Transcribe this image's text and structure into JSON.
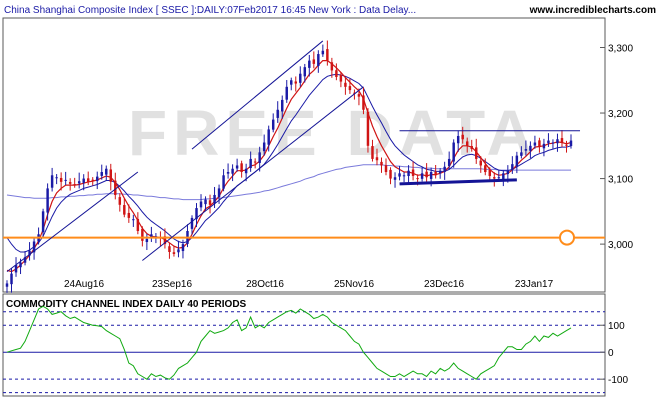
{
  "title": "China Shanghai Composite Index [ SSEC ]:DAILY:07Feb2017 16:45 New York : Data Delay...",
  "site": "www.incrediblecharts.com",
  "watermark": "FREE DATA",
  "subchart_title": "COMMODITY CHANNEL INDEX DAILY 40 PERIODS",
  "colors": {
    "up_candle": "#1a1aa6",
    "down_candle": "#d01414",
    "ma_short": "#d01414",
    "ma_mid": "#1a1aa6",
    "ma_long": "#7a7adb",
    "support_line": "#ff8c1a",
    "cci_line": "#11aa11",
    "dotted_level": "#1a1aa6"
  },
  "chart_data": [
    {
      "type": "candlestick",
      "title": "China Shanghai Composite Index [ SSEC ]:DAILY:07Feb2017 16:45 New York : Data Delay...",
      "x_tick_labels": [
        "24Aug16",
        "23Sep16",
        "28Oct16",
        "25Nov16",
        "23Dec16",
        "23Jan17"
      ],
      "y_tick_labels": [
        "3,300",
        "3,200",
        "3,100",
        "3,000"
      ],
      "ylim": [
        2930,
        3345
      ],
      "series": [
        {
          "name": "",
          "role": "price",
          "values": [
            2940,
            2955,
            2968,
            2972,
            2980,
            2990,
            3004,
            3015,
            3050,
            3085,
            3105,
            3102,
            3095,
            3098,
            3092,
            3090,
            3096,
            3100,
            3095,
            3098,
            3103,
            3110,
            3115,
            3095,
            3075,
            3060,
            3045,
            3040,
            3038,
            3020,
            3005,
            3008,
            3015,
            3012,
            3010,
            3000,
            2988,
            2985,
            2992,
            3000,
            3020,
            3040,
            3055,
            3065,
            3068,
            3060,
            3075,
            3085,
            3105,
            3110,
            3115,
            3120,
            3110,
            3115,
            3130,
            3125,
            3140,
            3155,
            3175,
            3190,
            3205,
            3220,
            3240,
            3250,
            3245,
            3260,
            3270,
            3280,
            3275,
            3290,
            3295,
            3280,
            3265,
            3255,
            3248,
            3240,
            3235,
            3230,
            3225,
            3205,
            3150,
            3130,
            3128,
            3120,
            3110,
            3100,
            3102,
            3108,
            3105,
            3112,
            3104,
            3100,
            3108,
            3102,
            3110,
            3105,
            3112,
            3118,
            3130,
            3155,
            3165,
            3160,
            3150,
            3145,
            3130,
            3120,
            3110,
            3104,
            3100,
            3102,
            3108,
            3112,
            3122,
            3135,
            3140,
            3145,
            3150,
            3155,
            3148,
            3153,
            3158,
            3155,
            3160,
            3155,
            3150,
            3158
          ]
        },
        {
          "name": "",
          "role": "moving-average-short",
          "values": [
            2960,
            2958,
            2962,
            2968,
            2975,
            2983,
            2993,
            3005,
            3022,
            3045,
            3065,
            3078,
            3085,
            3090,
            3090,
            3090,
            3091,
            3093,
            3095,
            3096,
            3098,
            3101,
            3104,
            3102,
            3094,
            3083,
            3070,
            3058,
            3048,
            3036,
            3024,
            3016,
            3012,
            3011,
            3010,
            3007,
            3002,
            2997,
            2994,
            2995,
            3002,
            3015,
            3030,
            3043,
            3054,
            3058,
            3065,
            3073,
            3086,
            3096,
            3104,
            3112,
            3112,
            3113,
            3119,
            3121,
            3127,
            3136,
            3150,
            3164,
            3177,
            3192,
            3207,
            3221,
            3230,
            3239,
            3249,
            3259,
            3265,
            3273,
            3280,
            3280,
            3275,
            3269,
            3262,
            3254,
            3247,
            3240,
            3234,
            3222,
            3200,
            3180,
            3164,
            3150,
            3138,
            3126,
            3118,
            3114,
            3110,
            3110,
            3108,
            3105,
            3106,
            3104,
            3106,
            3106,
            3108,
            3111,
            3118,
            3131,
            3143,
            3150,
            3150,
            3148,
            3141,
            3132,
            3123,
            3114,
            3108,
            3105,
            3106,
            3108,
            3113,
            3121,
            3128,
            3134,
            3141,
            3148,
            3149,
            3150,
            3153,
            3154,
            3156,
            3155,
            3153,
            3155
          ]
        },
        {
          "name": "",
          "role": "moving-average-mid",
          "values": [
            3010,
            3000,
            2992,
            2988,
            2988,
            2991,
            2996,
            3002,
            3012,
            3027,
            3042,
            3055,
            3064,
            3071,
            3076,
            3079,
            3082,
            3085,
            3087,
            3089,
            3091,
            3094,
            3097,
            3097,
            3094,
            3088,
            3081,
            3073,
            3066,
            3058,
            3049,
            3041,
            3035,
            3030,
            3025,
            3020,
            3014,
            3008,
            3004,
            3002,
            3004,
            3010,
            3018,
            3027,
            3036,
            3042,
            3049,
            3056,
            3065,
            3073,
            3081,
            3089,
            3094,
            3099,
            3105,
            3110,
            3116,
            3122,
            3131,
            3141,
            3152,
            3164,
            3176,
            3188,
            3197,
            3207,
            3217,
            3227,
            3235,
            3243,
            3251,
            3256,
            3258,
            3259,
            3258,
            3256,
            3253,
            3249,
            3245,
            3238,
            3224,
            3210,
            3197,
            3185,
            3172,
            3160,
            3150,
            3143,
            3136,
            3131,
            3126,
            3121,
            3118,
            3114,
            3113,
            3111,
            3111,
            3111,
            3114,
            3120,
            3127,
            3133,
            3136,
            3137,
            3135,
            3131,
            3126,
            3121,
            3116,
            3113,
            3112,
            3112,
            3114,
            3118,
            3122,
            3126,
            3130,
            3135,
            3138,
            3140,
            3143,
            3145,
            3147,
            3148,
            3148,
            3150
          ]
        },
        {
          "name": "",
          "role": "moving-average-long",
          "values": [
            3075,
            3074,
            3073,
            3072,
            3071,
            3071,
            3070,
            3070,
            3070,
            3070,
            3071,
            3071,
            3072,
            3072,
            3073,
            3073,
            3074,
            3074,
            3075,
            3075,
            3076,
            3076,
            3077,
            3077,
            3077,
            3077,
            3076,
            3076,
            3075,
            3075,
            3074,
            3073,
            3073,
            3072,
            3071,
            3071,
            3070,
            3069,
            3069,
            3068,
            3068,
            3068,
            3068,
            3068,
            3069,
            3069,
            3070,
            3070,
            3071,
            3072,
            3073,
            3074,
            3075,
            3076,
            3077,
            3078,
            3079,
            3081,
            3082,
            3084,
            3086,
            3088,
            3090,
            3092,
            3094,
            3096,
            3099,
            3101,
            3103,
            3106,
            3108,
            3110,
            3112,
            3114,
            3115,
            3117,
            3118,
            3119,
            3120,
            3121,
            3121,
            3121,
            3121,
            3121,
            3120,
            3120,
            3119,
            3119,
            3118,
            3118,
            3117,
            3117,
            3116,
            3116,
            3116,
            3115,
            3115,
            3115,
            3115,
            3115,
            3115,
            3115,
            3115,
            3115,
            3115,
            3115,
            3114,
            3114,
            3114,
            3113,
            3113,
            3113,
            3113,
            3113,
            3113,
            3113,
            3113,
            3113,
            3113,
            3113,
            3113,
            3113,
            3113,
            3113,
            3113,
            3113
          ]
        }
      ],
      "horizontal_lines": [
        {
          "value": 3010,
          "role": "support"
        }
      ],
      "annotations": [
        {
          "shape": "circle",
          "x_index": 125,
          "value": 3010
        },
        {
          "shape": "trendline",
          "from": [
            0,
            2958
          ],
          "to": [
            29,
            3110
          ]
        },
        {
          "shape": "trendline",
          "from": [
            30,
            2975
          ],
          "to": [
            79,
            3240
          ]
        },
        {
          "shape": "trendline",
          "from": [
            41,
            3145
          ],
          "to": [
            70,
            3310
          ]
        },
        {
          "shape": "line",
          "from": [
            87,
            3173
          ],
          "to": [
            127,
            3173
          ]
        },
        {
          "shape": "line",
          "from": [
            87,
            3092
          ],
          "to": [
            113,
            3098
          ],
          "thick": true
        }
      ]
    },
    {
      "type": "line",
      "title": "COMMODITY CHANNEL INDEX DAILY 40 PERIODS",
      "y_tick_labels": [
        "100",
        "0",
        "-100"
      ],
      "ylim": [
        -155,
        175
      ],
      "dotted_levels": [
        150,
        100,
        -100,
        -150
      ],
      "series": [
        {
          "name": "",
          "values": [
            0,
            5,
            10,
            15,
            40,
            80,
            120,
            160,
            170,
            160,
            140,
            145,
            150,
            135,
            125,
            130,
            120,
            110,
            105,
            100,
            98,
            95,
            80,
            70,
            60,
            50,
            10,
            -40,
            -50,
            -80,
            -90,
            -100,
            -80,
            -90,
            -85,
            -95,
            -100,
            -85,
            -60,
            -50,
            -40,
            -20,
            0,
            40,
            60,
            80,
            70,
            75,
            80,
            90,
            110,
            120,
            80,
            90,
            130,
            90,
            100,
            90,
            110,
            120,
            130,
            140,
            150,
            155,
            145,
            160,
            150,
            140,
            125,
            130,
            140,
            130,
            110,
            100,
            90,
            80,
            60,
            40,
            30,
            0,
            -20,
            -40,
            -60,
            -70,
            -80,
            -90,
            -90,
            -80,
            -90,
            -80,
            -70,
            -80,
            -80,
            -90,
            -70,
            -80,
            -60,
            -70,
            -60,
            -40,
            -60,
            -70,
            -80,
            -90,
            -100,
            -80,
            -70,
            -60,
            -50,
            -20,
            0,
            20,
            20,
            10,
            10,
            30,
            40,
            60,
            40,
            60,
            55,
            70,
            60,
            70,
            80,
            90
          ]
        }
      ]
    }
  ]
}
